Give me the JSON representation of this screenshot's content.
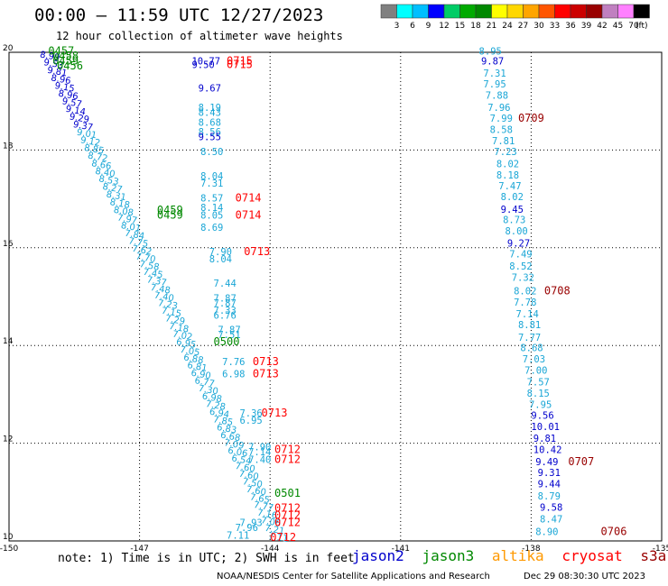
{
  "header": {
    "title": "00:00 – 11:59 UTC 12/27/2023",
    "subtitle": "12 hour collection of altimeter wave heights"
  },
  "colorbar": {
    "unit": "(ft)",
    "labels": [
      "3",
      "6",
      "9",
      "12",
      "15",
      "18",
      "21",
      "24",
      "27",
      "30",
      "33",
      "36",
      "39",
      "42",
      "45",
      "70"
    ],
    "colors": [
      "#808080",
      "#00ffff",
      "#00bfff",
      "#0000ff",
      "#00cc66",
      "#00aa00",
      "#008800",
      "#ffff00",
      "#ffd700",
      "#ffa500",
      "#ff5500",
      "#ff0000",
      "#cc0000",
      "#990000",
      "#c080c0",
      "#ff80ff",
      "#000000"
    ]
  },
  "map": {
    "lon_range": [
      -150,
      -135
    ],
    "lat_range": [
      10,
      20
    ],
    "x_tick_labels": [
      "-150",
      "-147",
      "-144",
      "-141",
      "-138",
      "-135"
    ],
    "y_tick_labels": [
      "20",
      "18",
      "16",
      "14",
      "12",
      "10"
    ],
    "grid": true
  },
  "satellite_colors": {
    "jason2": "#0000cc",
    "jason3": "#008800",
    "altika": "#ff9900",
    "cryosat": "#ff0000",
    "s3a": "#990000",
    "swh_low": "#1aa6d6",
    "swh_mid": "#0000cc"
  },
  "labels": [
    {
      "lon": -149.1,
      "lat": 19.95,
      "text": "0457",
      "sat": "jason3"
    },
    {
      "lon": -149.0,
      "lat": 19.85,
      "text": "0458",
      "sat": "jason3"
    },
    {
      "lon": -149.0,
      "lat": 19.75,
      "text": "0459",
      "sat": "jason3"
    },
    {
      "lon": -148.9,
      "lat": 19.65,
      "text": "0456",
      "sat": "jason3"
    },
    {
      "lon": -145.8,
      "lat": 19.75,
      "text": "10.77",
      "sat": "swh_mid"
    },
    {
      "lon": -145.8,
      "lat": 19.68,
      "text": "9.50",
      "sat": "swh_mid"
    },
    {
      "lon": -145.0,
      "lat": 19.75,
      "text": "0715",
      "sat": "cryosat"
    },
    {
      "lon": -145.0,
      "lat": 19.68,
      "text": "0715",
      "sat": "cryosat"
    },
    {
      "lon": -145.65,
      "lat": 19.2,
      "text": "9.67",
      "sat": "swh_mid"
    },
    {
      "lon": -145.65,
      "lat": 18.8,
      "text": "8.19",
      "sat": "swh_low"
    },
    {
      "lon": -145.65,
      "lat": 18.7,
      "text": "8.43",
      "sat": "swh_low"
    },
    {
      "lon": -145.65,
      "lat": 18.5,
      "text": "8.68",
      "sat": "swh_low"
    },
    {
      "lon": -145.65,
      "lat": 18.3,
      "text": "8.56",
      "sat": "swh_low"
    },
    {
      "lon": -145.65,
      "lat": 18.2,
      "text": "9.55",
      "sat": "swh_mid"
    },
    {
      "lon": -145.6,
      "lat": 17.9,
      "text": "8.50",
      "sat": "swh_low"
    },
    {
      "lon": -145.6,
      "lat": 17.4,
      "text": "8.04",
      "sat": "swh_low"
    },
    {
      "lon": -145.6,
      "lat": 17.25,
      "text": "7.31",
      "sat": "swh_low"
    },
    {
      "lon": -145.6,
      "lat": 16.95,
      "text": "8.57",
      "sat": "swh_low"
    },
    {
      "lon": -144.8,
      "lat": 16.95,
      "text": "0714",
      "sat": "cryosat"
    },
    {
      "lon": -145.6,
      "lat": 16.75,
      "text": "8.14",
      "sat": "swh_low"
    },
    {
      "lon": -146.6,
      "lat": 16.7,
      "text": "0459",
      "sat": "jason3"
    },
    {
      "lon": -146.6,
      "lat": 16.6,
      "text": "0459",
      "sat": "jason3"
    },
    {
      "lon": -145.6,
      "lat": 16.6,
      "text": "8.05",
      "sat": "swh_low"
    },
    {
      "lon": -144.8,
      "lat": 16.6,
      "text": "0714",
      "sat": "cryosat"
    },
    {
      "lon": -145.6,
      "lat": 16.35,
      "text": "8.69",
      "sat": "swh_low"
    },
    {
      "lon": -145.4,
      "lat": 15.85,
      "text": "7.90",
      "sat": "swh_low"
    },
    {
      "lon": -145.4,
      "lat": 15.7,
      "text": "8.04",
      "sat": "swh_low"
    },
    {
      "lon": -144.6,
      "lat": 15.85,
      "text": "0713",
      "sat": "cryosat"
    },
    {
      "lon": -145.3,
      "lat": 15.2,
      "text": "7.44",
      "sat": "swh_low"
    },
    {
      "lon": -145.3,
      "lat": 14.9,
      "text": "7.87",
      "sat": "swh_low"
    },
    {
      "lon": -145.3,
      "lat": 14.8,
      "text": "7.87",
      "sat": "swh_low"
    },
    {
      "lon": -145.3,
      "lat": 14.65,
      "text": "7.33",
      "sat": "swh_low"
    },
    {
      "lon": -145.3,
      "lat": 14.55,
      "text": "6.76",
      "sat": "swh_low"
    },
    {
      "lon": -145.2,
      "lat": 14.25,
      "text": "7.87",
      "sat": "swh_low"
    },
    {
      "lon": -145.2,
      "lat": 14.15,
      "text": "7.51",
      "sat": "swh_low"
    },
    {
      "lon": -145.3,
      "lat": 14.0,
      "text": "0500",
      "sat": "jason3"
    },
    {
      "lon": -145.1,
      "lat": 13.6,
      "text": "7.76",
      "sat": "swh_low"
    },
    {
      "lon": -144.4,
      "lat": 13.6,
      "text": "0713",
      "sat": "cryosat"
    },
    {
      "lon": -145.1,
      "lat": 13.35,
      "text": "6.98",
      "sat": "swh_low"
    },
    {
      "lon": -144.4,
      "lat": 13.35,
      "text": "0713",
      "sat": "cryosat"
    },
    {
      "lon": -144.7,
      "lat": 12.55,
      "text": "7.36",
      "sat": "swh_low"
    },
    {
      "lon": -144.7,
      "lat": 12.4,
      "text": "6.95",
      "sat": "swh_low"
    },
    {
      "lon": -144.2,
      "lat": 12.55,
      "text": "0713",
      "sat": "cryosat"
    },
    {
      "lon": -144.5,
      "lat": 11.85,
      "text": "7.90",
      "sat": "swh_low"
    },
    {
      "lon": -144.5,
      "lat": 11.75,
      "text": "7.14",
      "sat": "swh_low"
    },
    {
      "lon": -144.5,
      "lat": 11.6,
      "text": "7.40",
      "sat": "swh_low"
    },
    {
      "lon": -143.9,
      "lat": 11.8,
      "text": "0712",
      "sat": "cryosat"
    },
    {
      "lon": -143.9,
      "lat": 11.6,
      "text": "0712",
      "sat": "cryosat"
    },
    {
      "lon": -143.9,
      "lat": 10.9,
      "text": "0501",
      "sat": "jason3"
    },
    {
      "lon": -143.9,
      "lat": 10.6,
      "text": "0712",
      "sat": "cryosat"
    },
    {
      "lon": -143.9,
      "lat": 10.45,
      "text": "0712",
      "sat": "cryosat"
    },
    {
      "lon": -143.9,
      "lat": 10.3,
      "text": "0712",
      "sat": "cryosat"
    },
    {
      "lon": -144.0,
      "lat": 10.0,
      "text": "0712",
      "sat": "cryosat"
    },
    {
      "lon": -144.7,
      "lat": 10.3,
      "text": "7.93",
      "sat": "swh_low"
    },
    {
      "lon": -144.8,
      "lat": 10.2,
      "text": "7.96",
      "sat": "swh_low"
    },
    {
      "lon": -145.0,
      "lat": 10.05,
      "text": "7.11",
      "sat": "swh_low"
    },
    {
      "lon": -139.2,
      "lat": 19.95,
      "text": "8.95",
      "sat": "swh_low"
    },
    {
      "lon": -139.15,
      "lat": 19.75,
      "text": "9.87",
      "sat": "swh_mid"
    },
    {
      "lon": -139.1,
      "lat": 19.5,
      "text": "7.31",
      "sat": "swh_low"
    },
    {
      "lon": -139.1,
      "lat": 19.28,
      "text": "7.95",
      "sat": "swh_low"
    },
    {
      "lon": -139.05,
      "lat": 19.05,
      "text": "7.88",
      "sat": "swh_low"
    },
    {
      "lon": -139.0,
      "lat": 18.8,
      "text": "7.96",
      "sat": "swh_low"
    },
    {
      "lon": -138.95,
      "lat": 18.58,
      "text": "7.99",
      "sat": "swh_low"
    },
    {
      "lon": -138.3,
      "lat": 18.58,
      "text": "0709",
      "sat": "s3a"
    },
    {
      "lon": -138.95,
      "lat": 18.35,
      "text": "8.58",
      "sat": "swh_low"
    },
    {
      "lon": -138.9,
      "lat": 18.12,
      "text": "7.81",
      "sat": "swh_low"
    },
    {
      "lon": -138.85,
      "lat": 17.9,
      "text": "7.23",
      "sat": "swh_low"
    },
    {
      "lon": -138.8,
      "lat": 17.65,
      "text": "8.02",
      "sat": "swh_low"
    },
    {
      "lon": -138.8,
      "lat": 17.42,
      "text": "8.18",
      "sat": "swh_low"
    },
    {
      "lon": -138.75,
      "lat": 17.2,
      "text": "7.47",
      "sat": "swh_low"
    },
    {
      "lon": -138.7,
      "lat": 16.97,
      "text": "8.02",
      "sat": "swh_low"
    },
    {
      "lon": -138.7,
      "lat": 16.72,
      "text": "9.45",
      "sat": "swh_mid"
    },
    {
      "lon": -138.65,
      "lat": 16.5,
      "text": "8.73",
      "sat": "swh_low"
    },
    {
      "lon": -138.6,
      "lat": 16.27,
      "text": "8.00",
      "sat": "swh_low"
    },
    {
      "lon": -138.55,
      "lat": 16.02,
      "text": "9.27",
      "sat": "swh_mid"
    },
    {
      "lon": -138.5,
      "lat": 15.8,
      "text": "7.49",
      "sat": "swh_low"
    },
    {
      "lon": -138.5,
      "lat": 15.55,
      "text": "8.52",
      "sat": "swh_low"
    },
    {
      "lon": -138.45,
      "lat": 15.32,
      "text": "7.32",
      "sat": "swh_low"
    },
    {
      "lon": -138.4,
      "lat": 15.05,
      "text": "8.02",
      "sat": "swh_low"
    },
    {
      "lon": -137.7,
      "lat": 15.05,
      "text": "0708",
      "sat": "s3a"
    },
    {
      "lon": -138.4,
      "lat": 14.82,
      "text": "7.78",
      "sat": "swh_low"
    },
    {
      "lon": -138.35,
      "lat": 14.58,
      "text": "7.14",
      "sat": "swh_low"
    },
    {
      "lon": -138.3,
      "lat": 14.35,
      "text": "8.81",
      "sat": "swh_low"
    },
    {
      "lon": -138.3,
      "lat": 14.1,
      "text": "7.77",
      "sat": "swh_low"
    },
    {
      "lon": -138.25,
      "lat": 13.88,
      "text": "8.68",
      "sat": "swh_low"
    },
    {
      "lon": -138.2,
      "lat": 13.65,
      "text": "7.03",
      "sat": "swh_low"
    },
    {
      "lon": -138.15,
      "lat": 13.42,
      "text": "7.00",
      "sat": "swh_low"
    },
    {
      "lon": -138.1,
      "lat": 13.18,
      "text": "7.57",
      "sat": "swh_low"
    },
    {
      "lon": -138.1,
      "lat": 12.95,
      "text": "8.15",
      "sat": "swh_low"
    },
    {
      "lon": -138.05,
      "lat": 12.72,
      "text": "7.95",
      "sat": "swh_low"
    },
    {
      "lon": -138.0,
      "lat": 12.5,
      "text": "9.56",
      "sat": "swh_mid"
    },
    {
      "lon": -138.0,
      "lat": 12.27,
      "text": "10.01",
      "sat": "swh_mid"
    },
    {
      "lon": -137.95,
      "lat": 12.03,
      "text": "9.81",
      "sat": "swh_mid"
    },
    {
      "lon": -137.95,
      "lat": 11.8,
      "text": "10.42",
      "sat": "swh_mid"
    },
    {
      "lon": -137.9,
      "lat": 11.55,
      "text": "9.49",
      "sat": "swh_mid"
    },
    {
      "lon": -137.15,
      "lat": 11.55,
      "text": "0707",
      "sat": "s3a"
    },
    {
      "lon": -137.85,
      "lat": 11.33,
      "text": "9.31",
      "sat": "swh_mid"
    },
    {
      "lon": -137.85,
      "lat": 11.1,
      "text": "9.44",
      "sat": "swh_mid"
    },
    {
      "lon": -137.85,
      "lat": 10.85,
      "text": "8.79",
      "sat": "swh_low"
    },
    {
      "lon": -137.8,
      "lat": 10.62,
      "text": "9.58",
      "sat": "swh_mid"
    },
    {
      "lon": -137.8,
      "lat": 10.38,
      "text": "8.47",
      "sat": "swh_low"
    },
    {
      "lon": -137.9,
      "lat": 10.12,
      "text": "8.90",
      "sat": "swh_low"
    },
    {
      "lon": -136.4,
      "lat": 10.12,
      "text": "0706",
      "sat": "s3a"
    }
  ],
  "track_west": [
    "8.99",
    "9.53",
    "9.81",
    "8.96",
    "9.15",
    "8.96",
    "9.57",
    "9.14",
    "9.29",
    "9.37",
    "9.01",
    "9.12",
    "8.85",
    "8.72",
    "8.66",
    "8.40",
    "8.53",
    "8.27",
    "8.31",
    "8.18",
    "8.08",
    "7.97",
    "8.01",
    "7.84",
    "7.75",
    "7.62",
    "7.70",
    "7.58",
    "7.45",
    "7.37",
    "7.48",
    "7.40",
    "7.23",
    "7.15",
    "7.29",
    "7.18",
    "7.02",
    "6.95",
    "7.05",
    "6.88",
    "6.81",
    "6.90",
    "6.77",
    "7.30",
    "6.98",
    "7.28",
    "6.94",
    "7.85",
    "6.83",
    "6.68",
    "7.09",
    "6.06",
    "6.54",
    "7.60",
    "7.60",
    "7.50",
    "7.60",
    "7.65",
    "7.77",
    "7.16",
    "7.06",
    "7.21",
    "7.11"
  ],
  "footer": {
    "note": "note: 1) Time is in UTC; 2) SWH is in feet",
    "legend": [
      {
        "label": "jason2",
        "color": "#0000cc"
      },
      {
        "label": "jason3",
        "color": "#008800"
      },
      {
        "label": "altika",
        "color": "#ff9900"
      },
      {
        "label": "cryosat",
        "color": "#ff0000"
      },
      {
        "label": "s3a",
        "color": "#990000"
      }
    ],
    "credit": "NOAA/NESDIS Center for Satellite Applications and Research",
    "generated": "Dec 29 08:30:30 UTC 2023"
  }
}
